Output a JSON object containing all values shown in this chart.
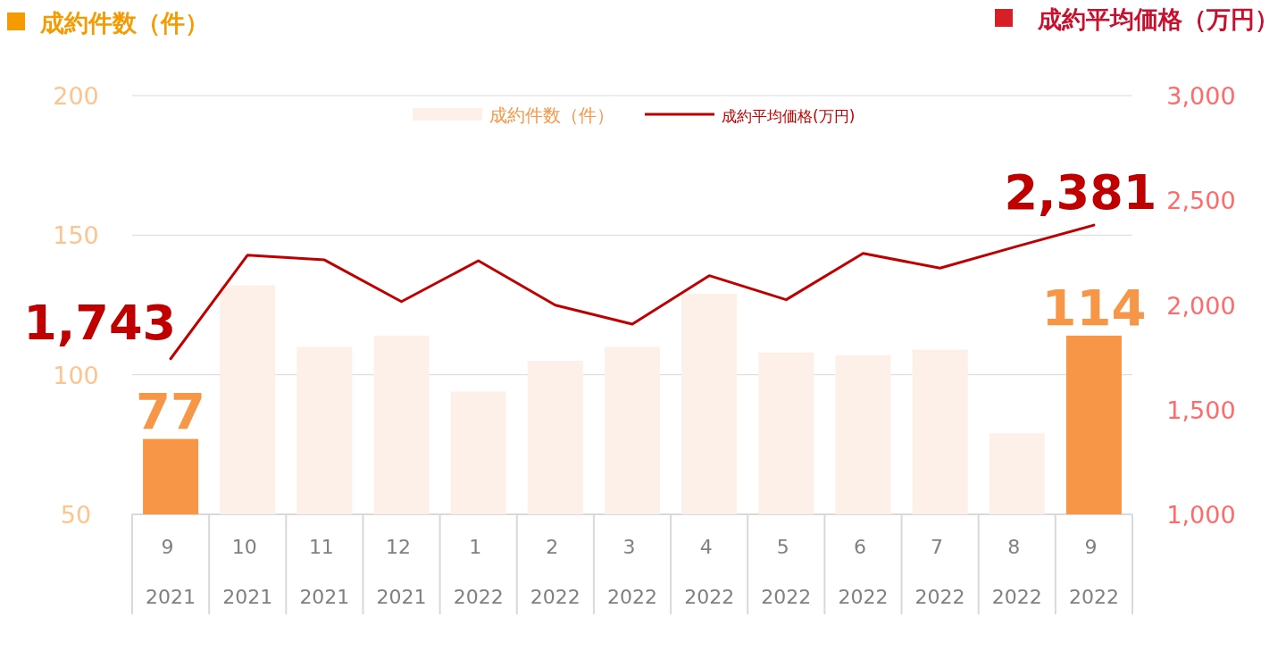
{
  "chart_data": {
    "type": "bar",
    "ylabel": "成約件数（件）",
    "y2label": "成約平均価格（万円）",
    "categories": [
      "9 2021",
      "10 2021",
      "11 2021",
      "12 2021",
      "1 2022",
      "2 2022",
      "3 2022",
      "4 2022",
      "5 2022",
      "6 2022",
      "7 2022",
      "8 2022",
      "9 2022"
    ],
    "series": [
      {
        "name": "成約件数（件）",
        "color": "#fcf0e8",
        "colors": [
          "#f79646",
          "#fcf0e8",
          "#fcf0e8",
          "#fcf0e8",
          "#fcf0e8",
          "#fcf0e8",
          "#fcf0e8",
          "#fcf0e8",
          "#fcf0e8",
          "#fcf0e8",
          "#fcf0e8",
          "#fcf0e8",
          "#f79646"
        ],
        "values": [
          77,
          132,
          110,
          114,
          94,
          105,
          110,
          129,
          108,
          107,
          109,
          79,
          114
        ],
        "value_labels": [
          "77",
          null,
          null,
          null,
          null,
          null,
          null,
          null,
          null,
          null,
          null,
          null,
          "114"
        ]
      },
      {
        "name": "成約平均価格(万円)",
        "type": "line",
        "axis": "y2",
        "color": "#c00000",
        "values": [
          1743,
          2238,
          2215,
          2016,
          2211,
          1999,
          1908,
          2140,
          2025,
          2246,
          2176,
          2280,
          2381
        ],
        "value_labels": [
          "1,743",
          null,
          null,
          null,
          null,
          null,
          null,
          null,
          null,
          null,
          null,
          null,
          "2,381"
        ]
      }
    ],
    "ylim": [
      50,
      200
    ],
    "yticks": [
      50,
      100,
      150,
      200
    ],
    "y2lim": [
      1000,
      3000
    ],
    "y2ticks": [
      {
        "value": 1000,
        "label": "1,000"
      },
      {
        "value": 1500,
        "label": "1,500"
      },
      {
        "value": 2000,
        "label": "2,000"
      },
      {
        "value": 2500,
        "label": "2,500"
      },
      {
        "value": 3000,
        "label": "3,000"
      }
    ],
    "grid": "y",
    "legend": "top",
    "marker": "none",
    "line_style": "solid"
  }
}
